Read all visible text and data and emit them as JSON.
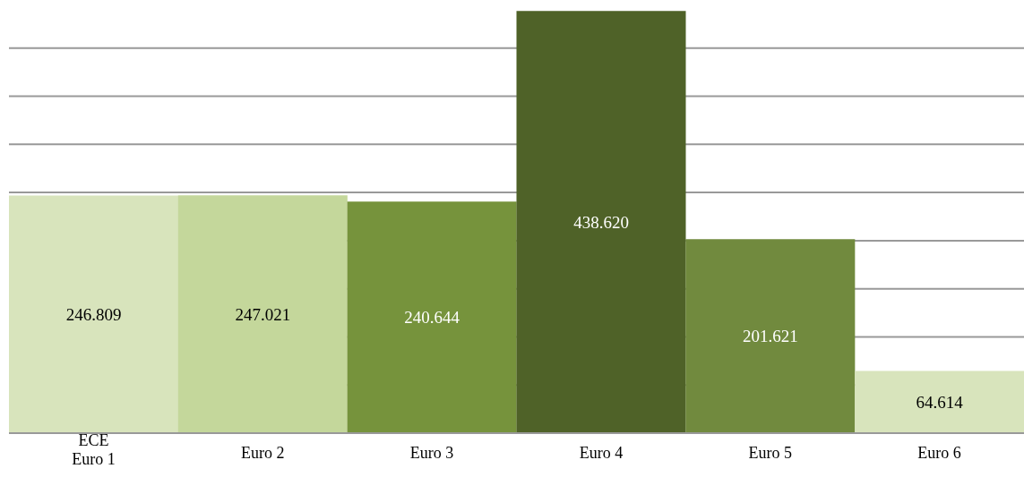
{
  "chart_data": {
    "type": "bar",
    "categories": [
      "ECE\nEuro 1",
      "Euro 2",
      "Euro 3",
      "Euro 4",
      "Euro 5",
      "Euro 6"
    ],
    "values": [
      246809,
      247021,
      240644,
      438620,
      201621,
      64614
    ],
    "value_labels": [
      "246.809",
      "247.021",
      "240.644",
      "438.620",
      "201.621",
      "64.614"
    ],
    "colors": [
      "#d8e4bc",
      "#c4d79b",
      "#76933c",
      "#4f6228",
      "#718a3e",
      "#d8e4bc"
    ],
    "ylim": [
      0,
      450000
    ],
    "yticks": [
      {
        "value": 0,
        "label": null
      },
      {
        "value": 50000,
        "label": null
      },
      {
        "value": 100000,
        "label": null
      },
      {
        "value": 150000,
        "label": null
      },
      {
        "value": 200000,
        "label": null
      },
      {
        "value": 250000,
        "label": null
      },
      {
        "value": 300000,
        "label": null
      },
      {
        "value": 350000,
        "label": null
      },
      {
        "value": 400000,
        "label": null
      }
    ],
    "grid": "y"
  }
}
